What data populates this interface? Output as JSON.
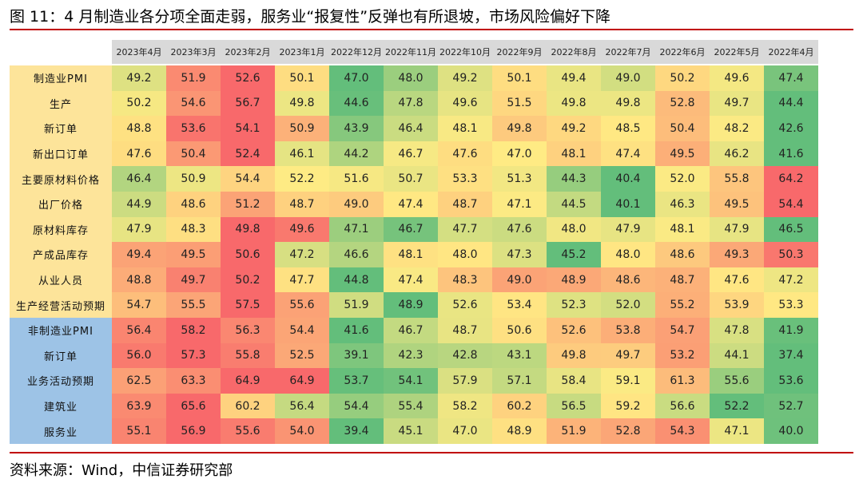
{
  "title": "图 11：4 月制造业各分项全面走弱，服务业“报复性”反弹也有所退坡，市场风险偏好下降",
  "table": {
    "columns": [
      "2023年4月",
      "2023年3月",
      "2023年2月",
      "2023年1月",
      "2022年12月",
      "2022年11月",
      "2022年10月",
      "2022年9月",
      "2022年8月",
      "2022年7月",
      "2022年6月",
      "2022年5月",
      "2022年4月"
    ],
    "rows": [
      {
        "label": "制造业PMI",
        "group": "manufacturing",
        "values": [
          "49.2",
          "51.9",
          "52.6",
          "50.1",
          "47.0",
          "48.0",
          "49.2",
          "50.1",
          "49.4",
          "49.0",
          "50.2",
          "49.6",
          "47.4"
        ]
      },
      {
        "label": "生产",
        "group": "manufacturing",
        "values": [
          "50.2",
          "54.6",
          "56.7",
          "49.8",
          "44.6",
          "47.8",
          "49.6",
          "51.5",
          "49.8",
          "49.8",
          "52.8",
          "49.7",
          "44.4"
        ]
      },
      {
        "label": "新订单",
        "group": "manufacturing",
        "values": [
          "48.8",
          "53.6",
          "54.1",
          "50.9",
          "43.9",
          "46.4",
          "48.1",
          "49.8",
          "49.2",
          "48.5",
          "50.4",
          "48.2",
          "42.6"
        ]
      },
      {
        "label": "新出口订单",
        "group": "manufacturing",
        "values": [
          "47.6",
          "50.4",
          "52.4",
          "46.1",
          "44.2",
          "46.7",
          "47.6",
          "47.0",
          "48.1",
          "47.4",
          "49.5",
          "46.2",
          "41.6"
        ]
      },
      {
        "label": "主要原材料价格",
        "group": "manufacturing",
        "values": [
          "46.4",
          "50.9",
          "54.4",
          "52.2",
          "51.6",
          "50.7",
          "53.3",
          "51.3",
          "44.3",
          "40.4",
          "52.0",
          "55.8",
          "64.2"
        ]
      },
      {
        "label": "出厂价格",
        "group": "manufacturing",
        "values": [
          "44.9",
          "48.6",
          "51.2",
          "48.7",
          "49.0",
          "47.4",
          "48.7",
          "47.1",
          "44.5",
          "40.1",
          "46.3",
          "49.5",
          "54.4"
        ]
      },
      {
        "label": "原材料库存",
        "group": "manufacturing",
        "values": [
          "47.9",
          "48.3",
          "49.8",
          "49.6",
          "47.1",
          "46.7",
          "47.7",
          "47.6",
          "48.0",
          "47.9",
          "48.1",
          "47.9",
          "46.5"
        ]
      },
      {
        "label": "产成品库存",
        "group": "manufacturing",
        "values": [
          "49.4",
          "49.5",
          "50.6",
          "47.2",
          "46.6",
          "48.1",
          "48.0",
          "47.3",
          "45.2",
          "48.0",
          "48.6",
          "49.3",
          "50.3"
        ]
      },
      {
        "label": "从业人员",
        "group": "manufacturing",
        "values": [
          "48.8",
          "49.7",
          "50.2",
          "47.7",
          "44.8",
          "47.4",
          "48.3",
          "49.0",
          "48.9",
          "48.6",
          "48.7",
          "47.6",
          "47.2"
        ]
      },
      {
        "label": "生产经营活动预期",
        "group": "manufacturing",
        "values": [
          "54.7",
          "55.5",
          "57.5",
          "55.6",
          "51.9",
          "48.9",
          "52.6",
          "53.4",
          "52.3",
          "52.0",
          "55.2",
          "53.9",
          "53.3"
        ]
      },
      {
        "label": "非制造业PMI",
        "group": "non-manufacturing",
        "values": [
          "56.4",
          "58.2",
          "56.3",
          "54.4",
          "41.6",
          "46.7",
          "48.7",
          "50.6",
          "52.6",
          "53.8",
          "54.7",
          "47.8",
          "41.9"
        ]
      },
      {
        "label": "新订单",
        "group": "non-manufacturing",
        "values": [
          "56.0",
          "57.3",
          "55.8",
          "52.5",
          "39.1",
          "42.3",
          "42.8",
          "43.1",
          "49.8",
          "49.7",
          "53.2",
          "44.1",
          "37.4"
        ]
      },
      {
        "label": "业务活动预期",
        "group": "non-manufacturing",
        "values": [
          "62.5",
          "63.3",
          "64.9",
          "64.9",
          "53.7",
          "54.1",
          "57.9",
          "57.1",
          "58.4",
          "59.1",
          "61.3",
          "55.6",
          "53.6"
        ]
      },
      {
        "label": "建筑业",
        "group": "non-manufacturing",
        "values": [
          "63.9",
          "65.6",
          "60.2",
          "56.4",
          "54.4",
          "55.4",
          "58.2",
          "60.2",
          "56.5",
          "59.2",
          "56.6",
          "52.2",
          "52.7"
        ]
      },
      {
        "label": "服务业",
        "group": "non-manufacturing",
        "values": [
          "55.1",
          "56.9",
          "55.6",
          "54.0",
          "39.4",
          "45.1",
          "47.0",
          "48.9",
          "51.9",
          "52.8",
          "54.3",
          "47.1",
          "40.0"
        ]
      }
    ]
  },
  "source": "资料来源：Wind，中信证券研究部"
}
